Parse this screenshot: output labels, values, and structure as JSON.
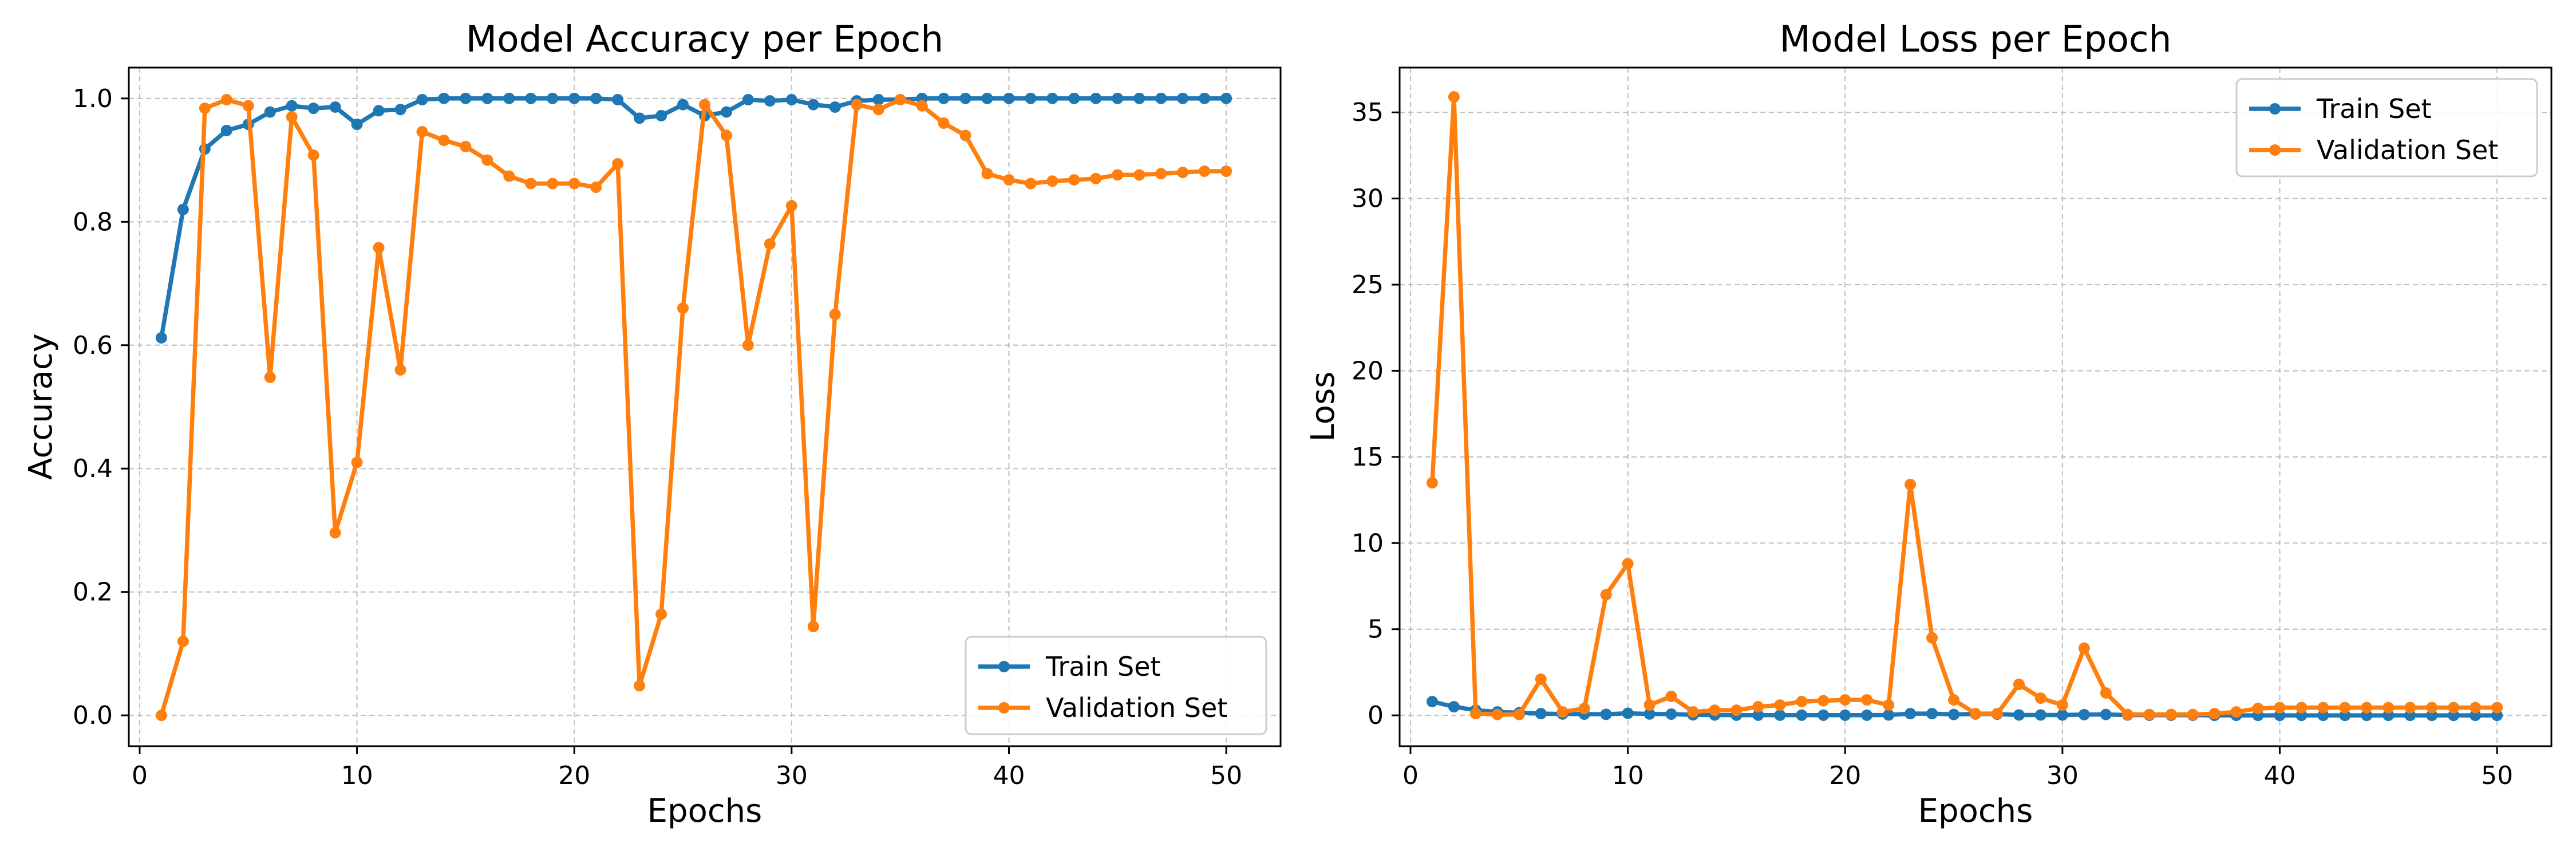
{
  "colors": {
    "train": "#1f77b4",
    "validation": "#ff7f0e"
  },
  "chart_data": [
    {
      "type": "line",
      "title": "Model Accuracy per Epoch",
      "xlabel": "Epochs",
      "ylabel": "Accuracy",
      "xlim": [
        -0.5,
        52.5
      ],
      "ylim": [
        -0.05,
        1.05
      ],
      "xticks": [
        0,
        10,
        20,
        30,
        40,
        50
      ],
      "xtick_labels": [
        "0",
        "10",
        "20",
        "30",
        "40",
        "50"
      ],
      "yticks": [
        0.0,
        0.2,
        0.4,
        0.6,
        0.8,
        1.0
      ],
      "ytick_labels": [
        "0.0",
        "0.2",
        "0.4",
        "0.6",
        "0.8",
        "1.0"
      ],
      "grid": true,
      "legend": "lower right",
      "x": [
        1,
        2,
        3,
        4,
        5,
        6,
        7,
        8,
        9,
        10,
        11,
        12,
        13,
        14,
        15,
        16,
        17,
        18,
        19,
        20,
        21,
        22,
        23,
        24,
        25,
        26,
        27,
        28,
        29,
        30,
        31,
        32,
        33,
        34,
        35,
        36,
        37,
        38,
        39,
        40,
        41,
        42,
        43,
        44,
        45,
        46,
        47,
        48,
        49,
        50
      ],
      "series": [
        {
          "name": "Train Set",
          "color": "#1f77b4",
          "values": [
            0.612,
            0.82,
            0.918,
            0.948,
            0.958,
            0.978,
            0.988,
            0.984,
            0.986,
            0.958,
            0.98,
            0.982,
            0.998,
            1.0,
            1.0,
            1.0,
            1.0,
            1.0,
            1.0,
            1.0,
            1.0,
            0.998,
            0.968,
            0.972,
            0.99,
            0.972,
            0.978,
            0.998,
            0.996,
            0.998,
            0.99,
            0.986,
            0.996,
            0.998,
            0.998,
            1.0,
            1.0,
            1.0,
            1.0,
            1.0,
            1.0,
            1.0,
            1.0,
            1.0,
            1.0,
            1.0,
            1.0,
            1.0,
            1.0,
            1.0
          ]
        },
        {
          "name": "Validation Set",
          "color": "#ff7f0e",
          "values": [
            0.0,
            0.12,
            0.984,
            0.998,
            0.988,
            0.548,
            0.97,
            0.908,
            0.296,
            0.41,
            0.758,
            0.56,
            0.946,
            0.932,
            0.922,
            0.9,
            0.874,
            0.862,
            0.862,
            0.862,
            0.856,
            0.894,
            0.048,
            0.164,
            0.66,
            0.99,
            0.94,
            0.6,
            0.764,
            0.826,
            0.144,
            0.65,
            0.99,
            0.982,
            0.998,
            0.988,
            0.96,
            0.94,
            0.878,
            0.868,
            0.862,
            0.866,
            0.868,
            0.87,
            0.876,
            0.876,
            0.878,
            0.88,
            0.882,
            0.882
          ]
        }
      ]
    },
    {
      "type": "line",
      "title": "Model Loss per Epoch",
      "xlabel": "Epochs",
      "ylabel": "Loss",
      "xlim": [
        -0.5,
        52.5
      ],
      "ylim": [
        -1.79,
        37.6
      ],
      "xticks": [
        0,
        10,
        20,
        30,
        40,
        50
      ],
      "xtick_labels": [
        "0",
        "10",
        "20",
        "30",
        "40",
        "50"
      ],
      "yticks": [
        0,
        5,
        10,
        15,
        20,
        25,
        30,
        35
      ],
      "ytick_labels": [
        "0",
        "5",
        "10",
        "15",
        "20",
        "25",
        "30",
        "35"
      ],
      "grid": true,
      "legend": "upper right",
      "x": [
        1,
        2,
        3,
        4,
        5,
        6,
        7,
        8,
        9,
        10,
        11,
        12,
        13,
        14,
        15,
        16,
        17,
        18,
        19,
        20,
        21,
        22,
        23,
        24,
        25,
        26,
        27,
        28,
        29,
        30,
        31,
        32,
        33,
        34,
        35,
        36,
        37,
        38,
        39,
        40,
        41,
        42,
        43,
        44,
        45,
        46,
        47,
        48,
        49,
        50
      ],
      "series": [
        {
          "name": "Train Set",
          "color": "#1f77b4",
          "values": [
            0.8,
            0.5,
            0.3,
            0.2,
            0.15,
            0.1,
            0.08,
            0.07,
            0.06,
            0.12,
            0.08,
            0.07,
            0.03,
            0.02,
            0.01,
            0.01,
            0.01,
            0.01,
            0.01,
            0.01,
            0.01,
            0.02,
            0.1,
            0.1,
            0.05,
            0.08,
            0.07,
            0.02,
            0.02,
            0.02,
            0.04,
            0.05,
            0.02,
            0.01,
            0.01,
            0.01,
            0.0,
            0.0,
            0.0,
            0.0,
            0.0,
            0.0,
            0.0,
            0.0,
            0.0,
            0.0,
            0.0,
            0.0,
            0.0,
            0.0
          ]
        },
        {
          "name": "Validation Set",
          "color": "#ff7f0e",
          "values": [
            13.5,
            35.9,
            0.1,
            0.05,
            0.05,
            2.1,
            0.2,
            0.4,
            7.0,
            8.8,
            0.6,
            1.1,
            0.2,
            0.3,
            0.3,
            0.5,
            0.6,
            0.8,
            0.85,
            0.9,
            0.9,
            0.6,
            13.4,
            4.5,
            0.9,
            0.1,
            0.1,
            1.8,
            1.0,
            0.6,
            3.9,
            1.3,
            0.05,
            0.05,
            0.05,
            0.05,
            0.1,
            0.2,
            0.4,
            0.45,
            0.45,
            0.45,
            0.45,
            0.45,
            0.45,
            0.45,
            0.45,
            0.45,
            0.45,
            0.45
          ]
        }
      ]
    }
  ]
}
